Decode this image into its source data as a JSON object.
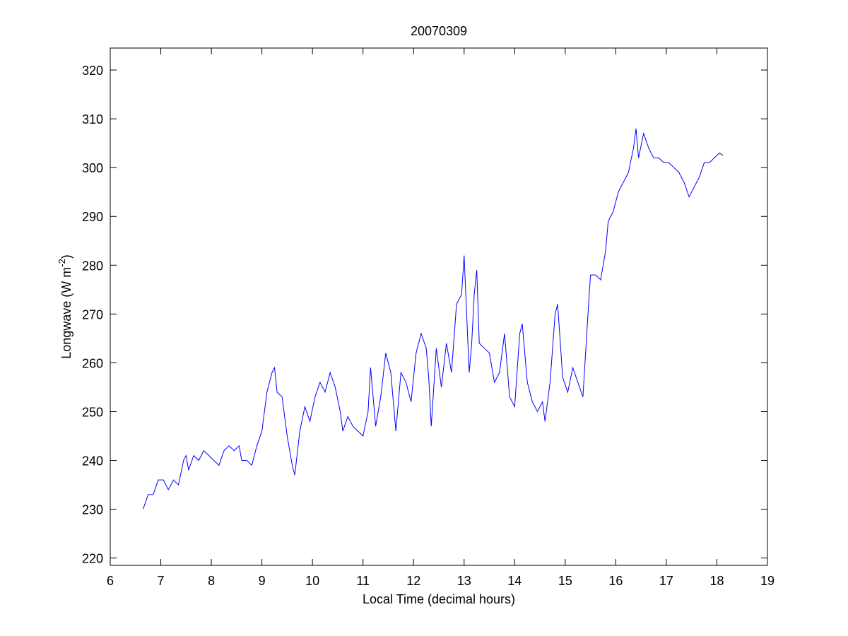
{
  "chart_data": {
    "type": "line",
    "title": "20070309",
    "xlabel": "Local Time (decimal hours)",
    "ylabel_parts": [
      "Longwave (W m",
      "-2",
      ")"
    ],
    "xlim": [
      6,
      19
    ],
    "xticks": [
      6,
      7,
      8,
      9,
      10,
      11,
      12,
      13,
      14,
      15,
      16,
      17,
      18,
      19
    ],
    "ylim": [
      218.5,
      324.5
    ],
    "yticks": [
      220,
      230,
      240,
      250,
      260,
      270,
      280,
      290,
      300,
      310,
      320
    ],
    "grid": false,
    "series": [
      {
        "color": "#0000ff",
        "x": [
          6.65,
          6.75,
          6.85,
          6.95,
          7.05,
          7.15,
          7.25,
          7.35,
          7.45,
          7.5,
          7.55,
          7.65,
          7.75,
          7.85,
          7.95,
          8.05,
          8.15,
          8.25,
          8.35,
          8.45,
          8.55,
          8.6,
          8.7,
          8.8,
          8.9,
          9.0,
          9.1,
          9.2,
          9.25,
          9.3,
          9.4,
          9.5,
          9.6,
          9.65,
          9.75,
          9.85,
          9.95,
          10.05,
          10.15,
          10.25,
          10.35,
          10.45,
          10.55,
          10.6,
          10.7,
          10.8,
          10.9,
          11.0,
          11.1,
          11.15,
          11.25,
          11.35,
          11.45,
          11.55,
          11.65,
          11.75,
          11.85,
          11.95,
          12.05,
          12.15,
          12.25,
          12.3,
          12.35,
          12.45,
          12.55,
          12.65,
          12.75,
          12.85,
          12.95,
          13.0,
          13.1,
          13.15,
          13.2,
          13.25,
          13.3,
          13.4,
          13.5,
          13.6,
          13.7,
          13.8,
          13.9,
          14.0,
          14.1,
          14.15,
          14.25,
          14.35,
          14.45,
          14.55,
          14.6,
          14.7,
          14.8,
          14.85,
          14.95,
          15.05,
          15.15,
          15.25,
          15.35,
          15.45,
          15.5,
          15.6,
          15.7,
          15.8,
          15.85,
          15.95,
          16.05,
          16.15,
          16.25,
          16.35,
          16.4,
          16.45,
          16.55,
          16.65,
          16.75,
          16.85,
          16.95,
          17.05,
          17.15,
          17.25,
          17.35,
          17.45,
          17.55,
          17.65,
          17.75,
          17.85,
          17.95,
          18.05,
          18.12
        ],
        "values": [
          230,
          233,
          233,
          236,
          236,
          234,
          236,
          235,
          240,
          241,
          238,
          241,
          240,
          242,
          241,
          240,
          239,
          242,
          243,
          242,
          243,
          240,
          240,
          239,
          243,
          246,
          254,
          258,
          259,
          254,
          253,
          245,
          239,
          237,
          246,
          251,
          248,
          253,
          256,
          254,
          258,
          255,
          250,
          246,
          249,
          247,
          246,
          245,
          250,
          259,
          247,
          253,
          262,
          258,
          246,
          258,
          256,
          252,
          262,
          266,
          263,
          257,
          247,
          263,
          255,
          264,
          258,
          272,
          274,
          282,
          258,
          264,
          274,
          279,
          264,
          263,
          262,
          256,
          258,
          266,
          253,
          251,
          266,
          268,
          256,
          252,
          250,
          252,
          248,
          256,
          270,
          272,
          257,
          254,
          259,
          256,
          253,
          270,
          278,
          278,
          277,
          283,
          289,
          291,
          295,
          297,
          299,
          304,
          308,
          302,
          307,
          304,
          302,
          302,
          301,
          301,
          300,
          299,
          297,
          294,
          296,
          298,
          301,
          301,
          302,
          303,
          302.5
        ]
      }
    ]
  }
}
